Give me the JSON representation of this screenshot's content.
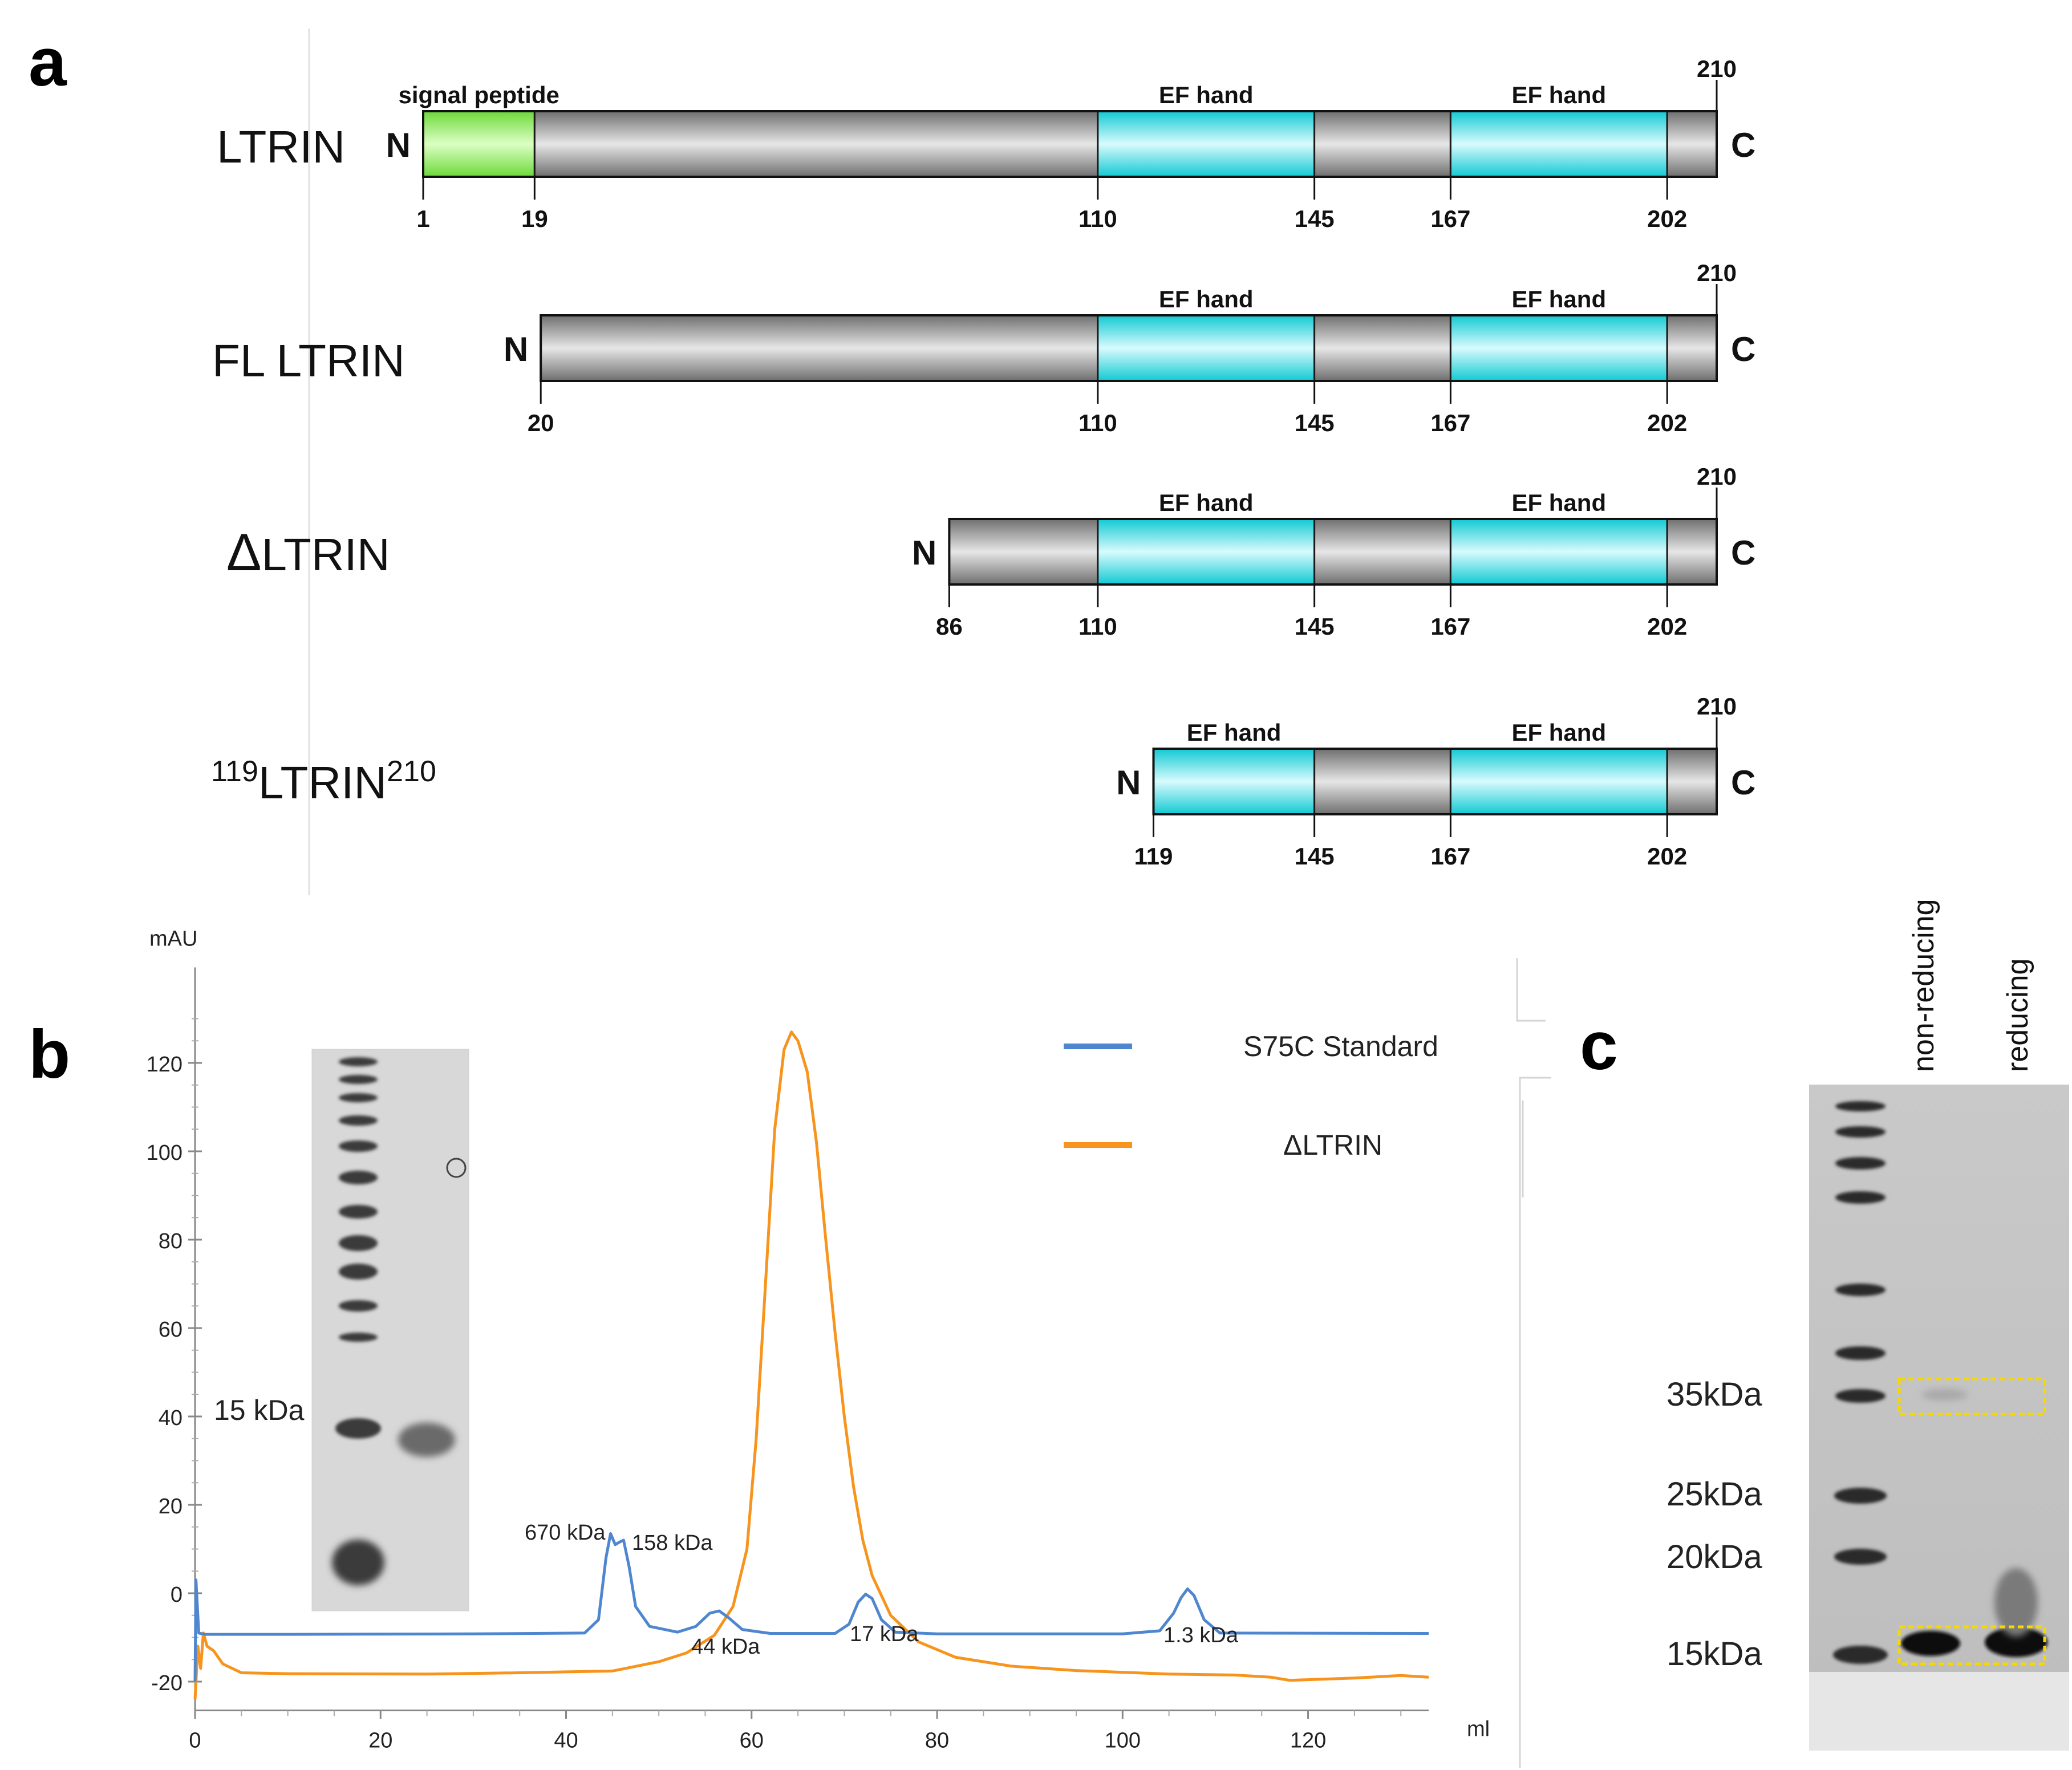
{
  "panel_a": {
    "label": "a",
    "rows": [
      {
        "name": "LTRIN",
        "name_superscript_pre": "",
        "name_superscript_post": "",
        "delta": false,
        "n_label": "N",
        "c_label": "C",
        "start": 1,
        "end": 210,
        "segments": [
          {
            "from": 1,
            "to": 19,
            "type": "signal",
            "label": "signal peptide"
          },
          {
            "from": 19,
            "to": 110,
            "type": "plain",
            "label": ""
          },
          {
            "from": 110,
            "to": 145,
            "type": "ef",
            "label": "EF hand"
          },
          {
            "from": 145,
            "to": 167,
            "type": "plain",
            "label": ""
          },
          {
            "from": 167,
            "to": 202,
            "type": "ef",
            "label": "EF hand"
          },
          {
            "from": 202,
            "to": 210,
            "type": "plain",
            "label": ""
          }
        ],
        "ticks": [
          "1",
          "19",
          "110",
          "145",
          "167",
          "202"
        ],
        "end_tick": "210"
      },
      {
        "name": "FL LTRIN",
        "name_superscript_pre": "",
        "name_superscript_post": "",
        "delta": false,
        "n_label": "N",
        "c_label": "C",
        "start": 20,
        "end": 210,
        "segments": [
          {
            "from": 20,
            "to": 110,
            "type": "plain",
            "label": ""
          },
          {
            "from": 110,
            "to": 145,
            "type": "ef",
            "label": "EF hand"
          },
          {
            "from": 145,
            "to": 167,
            "type": "plain",
            "label": ""
          },
          {
            "from": 167,
            "to": 202,
            "type": "ef",
            "label": "EF hand"
          },
          {
            "from": 202,
            "to": 210,
            "type": "plain",
            "label": ""
          }
        ],
        "ticks": [
          "20",
          "110",
          "145",
          "167",
          "202"
        ],
        "end_tick": "210"
      },
      {
        "name": "LTRIN",
        "name_superscript_pre": "",
        "name_superscript_post": "",
        "delta": true,
        "delta_symbol": "Δ",
        "n_label": "N",
        "c_label": "C",
        "start": 86,
        "end": 210,
        "segments": [
          {
            "from": 86,
            "to": 110,
            "type": "plain",
            "label": ""
          },
          {
            "from": 110,
            "to": 145,
            "type": "ef",
            "label": "EF hand"
          },
          {
            "from": 145,
            "to": 167,
            "type": "plain",
            "label": ""
          },
          {
            "from": 167,
            "to": 202,
            "type": "ef",
            "label": "EF hand"
          },
          {
            "from": 202,
            "to": 210,
            "type": "plain",
            "label": ""
          }
        ],
        "ticks": [
          "86",
          "110",
          "145",
          "167",
          "202"
        ],
        "end_tick": "210"
      },
      {
        "name": "LTRIN",
        "name_superscript_pre": "119",
        "name_superscript_post": "210",
        "delta": false,
        "n_label": "N",
        "c_label": "C",
        "start": 119,
        "end": 210,
        "segments": [
          {
            "from": 119,
            "to": 145,
            "type": "ef",
            "label": "EF hand"
          },
          {
            "from": 145,
            "to": 167,
            "type": "plain",
            "label": ""
          },
          {
            "from": 167,
            "to": 202,
            "type": "ef",
            "label": "EF hand"
          },
          {
            "from": 202,
            "to": 210,
            "type": "plain",
            "label": ""
          }
        ],
        "ticks": [
          "119",
          "145",
          "167",
          "202"
        ],
        "end_tick": "210"
      }
    ],
    "colors": {
      "signal": "#7ee84a",
      "ef": "#19e6ee",
      "plain": "#b0b0b0"
    }
  },
  "panel_b": {
    "label": "b",
    "inset_marker": "15 kDa",
    "peak_labels": [
      "670 kDa",
      "158 kDa",
      "44 kDa",
      "17 kDa",
      "1.3 kDa"
    ],
    "chart_data": {
      "type": "line",
      "title": "",
      "xlabel": "ml",
      "ylabel": "mAU",
      "xlim": [
        0,
        133
      ],
      "ylim": [
        -22,
        130
      ],
      "xticks": [
        0,
        20,
        40,
        60,
        80,
        100,
        120
      ],
      "yticks": [
        -20,
        0,
        20,
        40,
        60,
        80,
        100,
        120
      ],
      "legend_position": "top-right",
      "series": [
        {
          "name": "S75C Standard",
          "color": "#4f86d0",
          "points": [
            [
              0,
              -20
            ],
            [
              0.1,
              3
            ],
            [
              0.4,
              -9
            ],
            [
              1,
              -9.3
            ],
            [
              10,
              -9.3
            ],
            [
              30,
              -9.2
            ],
            [
              42,
              -9
            ],
            [
              43.5,
              -6
            ],
            [
              44.3,
              8
            ],
            [
              44.8,
              13.5
            ],
            [
              45.3,
              11
            ],
            [
              45.7,
              11.5
            ],
            [
              46.2,
              12
            ],
            [
              46.8,
              6
            ],
            [
              47.5,
              -3
            ],
            [
              49,
              -7.5
            ],
            [
              52,
              -8.8
            ],
            [
              54,
              -7.5
            ],
            [
              55.5,
              -4.5
            ],
            [
              56.5,
              -4
            ],
            [
              57.5,
              -5.5
            ],
            [
              59,
              -8.2
            ],
            [
              62,
              -9.1
            ],
            [
              69,
              -9.1
            ],
            [
              70.5,
              -7
            ],
            [
              71.5,
              -2
            ],
            [
              72.3,
              -0.2
            ],
            [
              73,
              -1.2
            ],
            [
              74,
              -6
            ],
            [
              75.5,
              -8.8
            ],
            [
              80,
              -9.2
            ],
            [
              100,
              -9.2
            ],
            [
              104,
              -8.5
            ],
            [
              105.5,
              -4.5
            ],
            [
              106.3,
              -1
            ],
            [
              107,
              1
            ],
            [
              107.7,
              -0.5
            ],
            [
              108.8,
              -6
            ],
            [
              110.5,
              -9
            ],
            [
              133,
              -9.1
            ]
          ]
        },
        {
          "name": "ΔLTRIN",
          "color": "#f7941d",
          "points": [
            [
              0,
              -24
            ],
            [
              0.3,
              -12
            ],
            [
              0.6,
              -17
            ],
            [
              0.9,
              -9
            ],
            [
              1.3,
              -12
            ],
            [
              2,
              -13
            ],
            [
              3,
              -16
            ],
            [
              5,
              -18
            ],
            [
              10,
              -18.2
            ],
            [
              25,
              -18.3
            ],
            [
              35,
              -18
            ],
            [
              40,
              -17.8
            ],
            [
              45,
              -17.6
            ],
            [
              50,
              -15.5
            ],
            [
              53,
              -13.5
            ],
            [
              56,
              -9.5
            ],
            [
              58,
              -3
            ],
            [
              59.5,
              10
            ],
            [
              60.5,
              35
            ],
            [
              61.5,
              70
            ],
            [
              62.5,
              105
            ],
            [
              63.5,
              123
            ],
            [
              64.3,
              127
            ],
            [
              65,
              125
            ],
            [
              66,
              118
            ],
            [
              67,
              102
            ],
            [
              68,
              80
            ],
            [
              69,
              59
            ],
            [
              70,
              40
            ],
            [
              71,
              24
            ],
            [
              72,
              12
            ],
            [
              73,
              4
            ],
            [
              75,
              -5
            ],
            [
              78,
              -11
            ],
            [
              82,
              -14.5
            ],
            [
              88,
              -16.5
            ],
            [
              95,
              -17.5
            ],
            [
              105,
              -18.3
            ],
            [
              112,
              -18.5
            ],
            [
              116,
              -19
            ],
            [
              118,
              -19.7
            ],
            [
              125,
              -19.2
            ],
            [
              130,
              -18.6
            ],
            [
              133,
              -19
            ]
          ]
        }
      ]
    }
  },
  "panel_c": {
    "label": "c",
    "lane_labels": [
      "non-reducing",
      "reducing"
    ],
    "markers": [
      "35kDa",
      "25kDa",
      "20kDa",
      "15kDa"
    ]
  }
}
